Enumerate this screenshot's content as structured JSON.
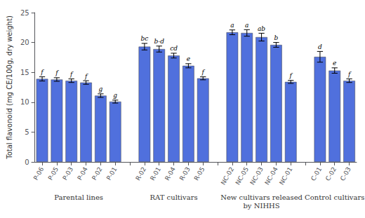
{
  "chart_data": {
    "type": "bar",
    "ylabel": "Total flavonoid (mg CE/100g, dry weight)",
    "categories": [
      "P-06",
      "P-05",
      "P-03",
      "P-04",
      "P-02",
      "P-01",
      "R-02",
      "R-01",
      "R-04",
      "R-03",
      "R-05",
      "NC-02",
      "NC-05",
      "NC-03",
      "NC-04",
      "NC-01",
      "C-01",
      "C-02",
      "C-03"
    ],
    "values": [
      13.9,
      13.8,
      13.6,
      13.3,
      11.1,
      10.1,
      19.3,
      18.9,
      17.8,
      16.1,
      14.0,
      21.7,
      21.6,
      20.9,
      19.6,
      13.4,
      17.6,
      15.3,
      13.6
    ],
    "errors": [
      0.35,
      0.3,
      0.3,
      0.3,
      0.3,
      0.25,
      0.55,
      0.5,
      0.4,
      0.35,
      0.25,
      0.4,
      0.55,
      0.65,
      0.4,
      0.25,
      0.9,
      0.45,
      0.3
    ],
    "annotations": [
      "f",
      "f",
      "f",
      "f",
      "g",
      "g",
      "bc",
      "b-d",
      "cd",
      "e",
      "f",
      "a",
      "a",
      "ab",
      "b",
      "f",
      "d",
      "e",
      "f"
    ],
    "groups": [
      {
        "label": "Parental lines",
        "categories": [
          "P-06",
          "P-05",
          "P-03",
          "P-04",
          "P-02",
          "P-01"
        ]
      },
      {
        "label": "RAT cultivars",
        "categories": [
          "R-02",
          "R-01",
          "R-04",
          "R-03",
          "R-05"
        ]
      },
      {
        "label": "New cultivars released\nby NIHHS",
        "categories": [
          "NC-02",
          "NC-05",
          "NC-03",
          "NC-04",
          "NC-01"
        ]
      },
      {
        "label": "Control cultivars",
        "categories": [
          "C-01",
          "C-02",
          "C-03"
        ]
      }
    ],
    "ylim": [
      0,
      25
    ],
    "yticks": [
      0,
      5,
      10,
      15,
      20,
      25
    ],
    "grid": false
  }
}
